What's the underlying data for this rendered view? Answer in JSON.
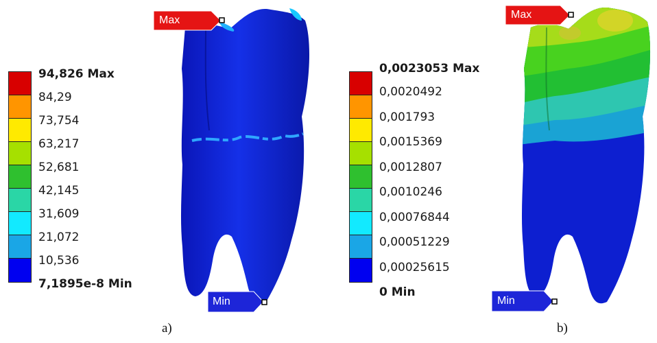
{
  "panels": [
    {
      "caption": "a)",
      "legend": {
        "labels": [
          "94,826 Max",
          "84,29",
          "73,754",
          "63,217",
          "52,681",
          "42,145",
          "31,609",
          "21,072",
          "10,536",
          "7,1895e-8 Min"
        ],
        "colors": [
          "#d80000",
          "#ff9500",
          "#ffea00",
          "#a6e000",
          "#2fc02f",
          "#2ad6a6",
          "#12eaff",
          "#1aa6e6",
          "#0000f0"
        ]
      },
      "max_tag": "Max",
      "min_tag": "Min"
    },
    {
      "caption": "b)",
      "legend": {
        "labels": [
          "0,0023053 Max",
          "0,0020492",
          "0,001793",
          "0,0015369",
          "0,0012807",
          "0,0010246",
          "0,00076844",
          "0,00051229",
          "0,00025615",
          "0 Min"
        ],
        "colors": [
          "#d80000",
          "#ff9500",
          "#ffea00",
          "#a6e000",
          "#2fc02f",
          "#2ad6a6",
          "#12eaff",
          "#1aa6e6",
          "#0000f0"
        ]
      },
      "max_tag": "Max",
      "min_tag": "Min"
    }
  ]
}
